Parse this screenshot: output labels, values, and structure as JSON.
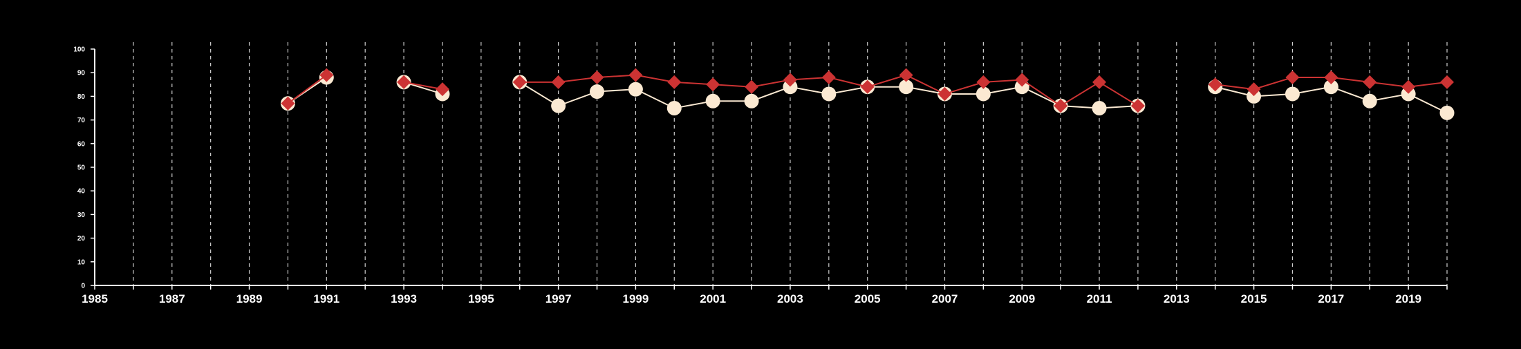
{
  "chart_data": {
    "type": "line",
    "title": "",
    "xlabel": "",
    "ylabel": "",
    "xlim": [
      1985,
      2020
    ],
    "ylim": [
      0,
      100
    ],
    "x_ticks": [
      1985,
      1987,
      1989,
      1991,
      1993,
      1995,
      1997,
      1999,
      2001,
      2003,
      2005,
      2007,
      2009,
      2011,
      2013,
      2015,
      2017,
      2019
    ],
    "x_tick_labels": [
      "1985",
      "1987",
      "1989",
      "1991",
      "1993",
      "1995",
      "1997",
      "1999",
      "2001",
      "2003",
      "2005",
      "2007",
      "2009",
      "2011",
      "2013",
      "2015",
      "2017",
      "2019"
    ],
    "y_ticks": [
      0,
      10,
      20,
      30,
      40,
      50,
      60,
      70,
      80,
      90,
      100
    ],
    "y_tick_labels": [
      "0",
      "10",
      "20",
      "30",
      "40",
      "50",
      "60",
      "70",
      "80",
      "90",
      "100"
    ],
    "vertical_grid": "dashed, yearly",
    "colors": {
      "background": "#000000",
      "axis": "#ffffff",
      "grid": "#cfcfcf",
      "series_circle": "#fbe9d2",
      "series_diamond": "#cc3333"
    },
    "series": [
      {
        "marker": "circle",
        "color": "#fbe9d2",
        "points": [
          [
            1990,
            77
          ],
          [
            1991,
            88
          ],
          [
            1993,
            86
          ],
          [
            1994,
            81
          ],
          [
            1996,
            86
          ],
          [
            1997,
            76
          ],
          [
            1998,
            82
          ],
          [
            1999,
            83
          ],
          [
            2000,
            75
          ],
          [
            2001,
            78
          ],
          [
            2002,
            78
          ],
          [
            2003,
            84
          ],
          [
            2004,
            81
          ],
          [
            2005,
            84
          ],
          [
            2006,
            84
          ],
          [
            2007,
            81
          ],
          [
            2008,
            81
          ],
          [
            2009,
            84
          ],
          [
            2010,
            76
          ],
          [
            2011,
            75
          ],
          [
            2012,
            76
          ],
          [
            2014,
            84
          ],
          [
            2015,
            80
          ],
          [
            2016,
            81
          ],
          [
            2017,
            84
          ],
          [
            2018,
            78
          ],
          [
            2019,
            81
          ],
          [
            2020,
            73
          ]
        ]
      },
      {
        "marker": "diamond",
        "color": "#cc3333",
        "points": [
          [
            1990,
            77
          ],
          [
            1991,
            89
          ],
          [
            1993,
            86
          ],
          [
            1994,
            83
          ],
          [
            1996,
            86
          ],
          [
            1997,
            86
          ],
          [
            1998,
            88
          ],
          [
            1999,
            89
          ],
          [
            2000,
            86
          ],
          [
            2001,
            85
          ],
          [
            2002,
            84
          ],
          [
            2003,
            87
          ],
          [
            2004,
            88
          ],
          [
            2005,
            84
          ],
          [
            2006,
            89
          ],
          [
            2007,
            81
          ],
          [
            2008,
            86
          ],
          [
            2009,
            87
          ],
          [
            2010,
            76
          ],
          [
            2011,
            86
          ],
          [
            2012,
            76
          ],
          [
            2014,
            85
          ],
          [
            2015,
            83
          ],
          [
            2016,
            88
          ],
          [
            2017,
            88
          ],
          [
            2018,
            86
          ],
          [
            2019,
            84
          ],
          [
            2020,
            86
          ]
        ]
      }
    ]
  }
}
